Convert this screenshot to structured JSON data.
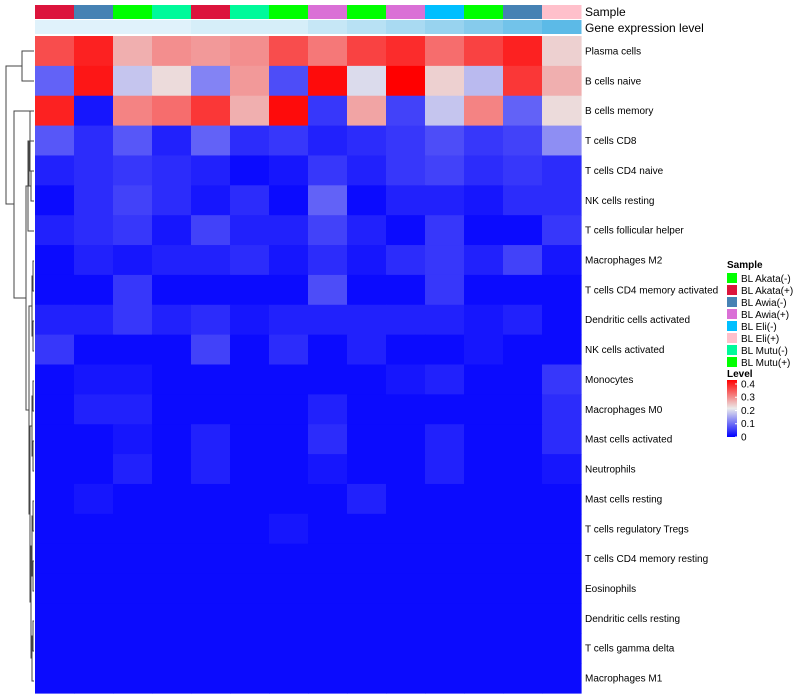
{
  "chart_data": {
    "type": "heatmap",
    "title": "",
    "annotation_labels": {
      "sample": "Sample",
      "gene_expression": "Gene expression level"
    },
    "sample_legend": {
      "title": "Sample",
      "entries": [
        {
          "label": "BL Akata(-)",
          "color": "#00ff00"
        },
        {
          "label": "BL Akata(+)",
          "color": "#dc143c"
        },
        {
          "label": "BL Awia(-)",
          "color": "#4682b4"
        },
        {
          "label": "BL Awia(+)",
          "color": "#da70d6"
        },
        {
          "label": "BL Eli(-)",
          "color": "#00bfff"
        },
        {
          "label": "BL Eli(+)",
          "color": "#ffc0cb"
        },
        {
          "label": "BL Mutu(-)",
          "color": "#00fa9a"
        },
        {
          "label": "BL Mutu(+)",
          "color": "#00ff00"
        }
      ]
    },
    "color_legend": {
      "title": "Level",
      "ticks": [
        "0.4",
        "0.3",
        "0.2",
        "0.1",
        "0"
      ],
      "tick_values": [
        0.4,
        0.3,
        0.2,
        0.1,
        0
      ],
      "range": [
        0,
        0.43
      ],
      "colors": [
        "#0000ff",
        "#ebebeb",
        "#ff0000"
      ]
    },
    "columns": [
      {
        "sample": "BL Akata(+)",
        "color": "#dc143c",
        "expr_color": "#e0f2fb"
      },
      {
        "sample": "BL Awia(-)",
        "color": "#4682b4",
        "expr_color": "#e0f2fb"
      },
      {
        "sample": "BL Mutu(+)",
        "color": "#00ff00",
        "expr_color": "#e0f2fb"
      },
      {
        "sample": "BL Mutu(-)",
        "color": "#00fa9a",
        "expr_color": "#e0f2fb"
      },
      {
        "sample": "BL Akata(+)",
        "color": "#dc143c",
        "expr_color": "#d6eef9"
      },
      {
        "sample": "BL Mutu(-)",
        "color": "#00fa9a",
        "expr_color": "#d6eef9"
      },
      {
        "sample": "BL Mutu(+)",
        "color": "#00ff00",
        "expr_color": "#d6eef9"
      },
      {
        "sample": "BL Awia(+)",
        "color": "#da70d6",
        "expr_color": "#c6e7f6"
      },
      {
        "sample": "BL Mutu(+)",
        "color": "#00ff00",
        "expr_color": "#b8e1f4"
      },
      {
        "sample": "BL Awia(+)",
        "color": "#da70d6",
        "expr_color": "#a9daf2"
      },
      {
        "sample": "BL Eli(-)",
        "color": "#00bfff",
        "expr_color": "#98d3ef"
      },
      {
        "sample": "BL Mutu(+)",
        "color": "#00ff00",
        "expr_color": "#86cbec"
      },
      {
        "sample": "BL Awia(-)",
        "color": "#4682b4",
        "expr_color": "#72c3ea"
      },
      {
        "sample": "BL Eli(+)",
        "color": "#ffc0cb",
        "expr_color": "#5cbae7"
      }
    ],
    "rows": [
      "Plasma cells",
      "B cells naive",
      "B cells memory",
      "T cells CD8",
      "T cells CD4 naive",
      "NK cells resting",
      "T cells follicular helper",
      "Macrophages M2",
      "T cells CD4 memory activated",
      "Dendritic cells activated",
      "NK cells activated",
      "Monocytes",
      "Macrophages M0",
      "Mast cells activated",
      "Neutrophils",
      "Mast cells resting",
      "T cells regulatory  Tregs",
      "T cells CD4 memory resting",
      "Eosinophils",
      "Dendritic cells resting",
      "T cells gamma delta",
      "Macrophages M1"
    ],
    "values": [
      [
        0.36,
        0.4,
        0.27,
        0.3,
        0.29,
        0.3,
        0.36,
        0.32,
        0.37,
        0.39,
        0.33,
        0.37,
        0.4,
        0.24
      ],
      [
        0.09,
        0.41,
        0.18,
        0.23,
        0.12,
        0.29,
        0.07,
        0.42,
        0.2,
        0.43,
        0.24,
        0.17,
        0.38,
        0.27
      ],
      [
        0.4,
        0.02,
        0.31,
        0.33,
        0.38,
        0.27,
        0.42,
        0.05,
        0.28,
        0.06,
        0.18,
        0.31,
        0.09,
        0.23
      ],
      [
        0.08,
        0.04,
        0.08,
        0.03,
        0.09,
        0.04,
        0.05,
        0.03,
        0.04,
        0.05,
        0.07,
        0.05,
        0.06,
        0.13
      ],
      [
        0.03,
        0.04,
        0.05,
        0.04,
        0.03,
        0.01,
        0.02,
        0.05,
        0.03,
        0.05,
        0.06,
        0.04,
        0.05,
        0.04
      ],
      [
        0.01,
        0.04,
        0.06,
        0.04,
        0.02,
        0.04,
        0.01,
        0.09,
        0.01,
        0.03,
        0.03,
        0.02,
        0.04,
        0.04
      ],
      [
        0.03,
        0.04,
        0.05,
        0.02,
        0.06,
        0.03,
        0.03,
        0.06,
        0.03,
        0.01,
        0.05,
        0.01,
        0.01,
        0.05
      ],
      [
        0.01,
        0.03,
        0.02,
        0.03,
        0.03,
        0.04,
        0.02,
        0.04,
        0.02,
        0.04,
        0.05,
        0.03,
        0.06,
        0.02
      ],
      [
        0.01,
        0.01,
        0.05,
        0.01,
        0.01,
        0.01,
        0.01,
        0.07,
        0.01,
        0.01,
        0.05,
        0.01,
        0.01,
        0.01
      ],
      [
        0.03,
        0.03,
        0.05,
        0.03,
        0.04,
        0.02,
        0.03,
        0.03,
        0.03,
        0.03,
        0.03,
        0.02,
        0.03,
        0.01
      ],
      [
        0.05,
        0.01,
        0.01,
        0.01,
        0.06,
        0.01,
        0.04,
        0.01,
        0.03,
        0.01,
        0.01,
        0.02,
        0.01,
        0.01
      ],
      [
        0.01,
        0.02,
        0.02,
        0.01,
        0.01,
        0.01,
        0.01,
        0.01,
        0.01,
        0.02,
        0.03,
        0.01,
        0.01,
        0.05
      ],
      [
        0.01,
        0.03,
        0.03,
        0.01,
        0.01,
        0.01,
        0.01,
        0.03,
        0.01,
        0.01,
        0.01,
        0.01,
        0.01,
        0.04
      ],
      [
        0.01,
        0.01,
        0.02,
        0.01,
        0.03,
        0.01,
        0.01,
        0.04,
        0.01,
        0.01,
        0.03,
        0.01,
        0.01,
        0.04
      ],
      [
        0.01,
        0.01,
        0.03,
        0.01,
        0.03,
        0.01,
        0.01,
        0.02,
        0.01,
        0.01,
        0.03,
        0.01,
        0.01,
        0.02
      ],
      [
        0.01,
        0.02,
        0.01,
        0.01,
        0.01,
        0.01,
        0.01,
        0.01,
        0.03,
        0.01,
        0.01,
        0.01,
        0.01,
        0.01
      ],
      [
        0.01,
        0.01,
        0.01,
        0.01,
        0.01,
        0.01,
        0.02,
        0.01,
        0.01,
        0.01,
        0.01,
        0.01,
        0.01,
        0.01
      ],
      [
        0.01,
        0.01,
        0.01,
        0.01,
        0.01,
        0.01,
        0.01,
        0.01,
        0.01,
        0.01,
        0.01,
        0.01,
        0.01,
        0.01
      ],
      [
        0.01,
        0.01,
        0.01,
        0.01,
        0.01,
        0.01,
        0.01,
        0.01,
        0.01,
        0.01,
        0.01,
        0.01,
        0.01,
        0.01
      ],
      [
        0.01,
        0.01,
        0.01,
        0.01,
        0.01,
        0.01,
        0.01,
        0.01,
        0.01,
        0.01,
        0.01,
        0.01,
        0.01,
        0.01
      ],
      [
        0.01,
        0.01,
        0.01,
        0.01,
        0.01,
        0.01,
        0.01,
        0.01,
        0.01,
        0.01,
        0.01,
        0.01,
        0.01,
        0.01
      ],
      [
        0.01,
        0.01,
        0.01,
        0.01,
        0.01,
        0.01,
        0.01,
        0.01,
        0.01,
        0.01,
        0.01,
        0.01,
        0.01,
        0.01
      ]
    ]
  }
}
